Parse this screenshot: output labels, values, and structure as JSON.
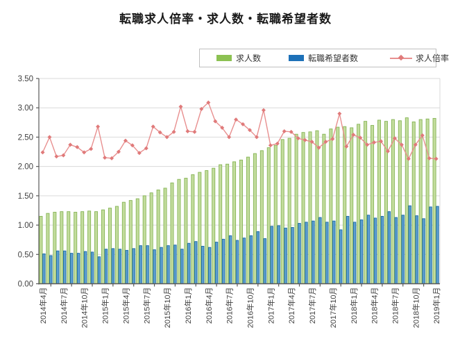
{
  "page": {
    "title": "転職求人倍率・求人数・転職希望者数"
  },
  "legend": {
    "items": [
      {
        "label": "求人数"
      },
      {
        "label": "転職希望者数"
      },
      {
        "label": "求人倍率"
      }
    ]
  },
  "chart_data": {
    "type": "bar+line combo",
    "title": "転職求人倍率・求人数・転職希望者数",
    "n_categories": 58,
    "x_start": "2014年4月",
    "x_end": "2019年1月",
    "x_tick_interval": 3,
    "x_tick_labels": [
      "2014年4月",
      "2014年7月",
      "2014年10月",
      "2015年1月",
      "2015年4月",
      "2015年7月",
      "2015年10月",
      "2016年1月",
      "2016年4月",
      "2016年7月",
      "2016年10月",
      "2017年1月",
      "2017年4月",
      "2017年7月",
      "2017年10月",
      "2018年1月",
      "2018年4月",
      "2018年7月",
      "2018年10月",
      "2019年1月"
    ],
    "ylim": [
      0,
      3.5
    ],
    "y_tick_labels": [
      "0.00",
      "0.50",
      "1.00",
      "1.50",
      "2.00",
      "2.50",
      "3.00",
      "3.50"
    ],
    "grid": true,
    "legend_position": "top-right",
    "colors": {
      "axis": "#595959",
      "grid": "#d9d9d9",
      "tick_label": "#3f3f3f",
      "legend_border": "#bfbfbf"
    },
    "series": [
      {
        "name": "求人数",
        "type": "bar",
        "fill": "#c3dc9d",
        "edge": "#86b556",
        "legend_color": "#8cc152",
        "values": [
          1.15,
          1.2,
          1.22,
          1.23,
          1.23,
          1.22,
          1.23,
          1.24,
          1.23,
          1.26,
          1.29,
          1.32,
          1.39,
          1.42,
          1.45,
          1.5,
          1.55,
          1.6,
          1.63,
          1.72,
          1.78,
          1.8,
          1.86,
          1.9,
          1.93,
          1.97,
          2.03,
          2.04,
          2.08,
          2.11,
          2.16,
          2.22,
          2.27,
          2.32,
          2.36,
          2.46,
          2.48,
          2.55,
          2.58,
          2.59,
          2.61,
          2.55,
          2.64,
          2.67,
          2.68,
          2.66,
          2.72,
          2.77,
          2.7,
          2.79,
          2.77,
          2.8,
          2.78,
          2.83,
          2.76,
          2.8,
          2.81,
          2.82
        ]
      },
      {
        "name": "転職希望者数",
        "type": "bar",
        "fill": "#5d9fd0",
        "edge": "#1b6aa4",
        "legend_color": "#1d71b8",
        "values": [
          0.51,
          0.48,
          0.56,
          0.56,
          0.52,
          0.52,
          0.55,
          0.54,
          0.46,
          0.59,
          0.6,
          0.59,
          0.57,
          0.6,
          0.65,
          0.65,
          0.58,
          0.62,
          0.65,
          0.66,
          0.59,
          0.69,
          0.72,
          0.64,
          0.62,
          0.71,
          0.76,
          0.82,
          0.74,
          0.78,
          0.82,
          0.89,
          0.77,
          0.98,
          0.99,
          0.95,
          0.96,
          1.03,
          1.05,
          1.07,
          1.13,
          1.05,
          1.07,
          0.92,
          1.15,
          1.05,
          1.09,
          1.17,
          1.12,
          1.15,
          1.23,
          1.13,
          1.17,
          1.33,
          1.16,
          1.11,
          1.31,
          1.32
        ]
      },
      {
        "name": "求人倍率",
        "type": "line",
        "marker": "diamond",
        "color": "#e88f8f",
        "marker_color": "#e07a7a",
        "values": [
          2.24,
          2.5,
          2.17,
          2.19,
          2.37,
          2.33,
          2.24,
          2.3,
          2.68,
          2.15,
          2.14,
          2.25,
          2.44,
          2.36,
          2.23,
          2.31,
          2.68,
          2.58,
          2.5,
          2.59,
          3.02,
          2.6,
          2.59,
          2.98,
          3.09,
          2.77,
          2.66,
          2.5,
          2.8,
          2.72,
          2.62,
          2.5,
          2.96,
          2.36,
          2.39,
          2.6,
          2.59,
          2.48,
          2.45,
          2.42,
          2.32,
          2.42,
          2.47,
          2.9,
          2.34,
          2.54,
          2.49,
          2.37,
          2.41,
          2.43,
          2.26,
          2.48,
          2.37,
          2.13,
          2.37,
          2.53,
          2.14,
          2.13
        ]
      }
    ]
  }
}
